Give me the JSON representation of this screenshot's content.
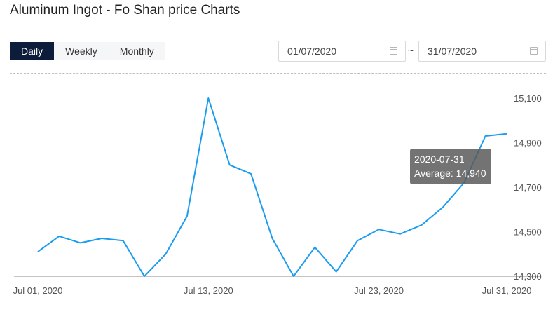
{
  "header": {
    "title": "Aluminum Ingot - Fo Shan price Charts"
  },
  "tabs": [
    {
      "label": "Daily",
      "active": true
    },
    {
      "label": "Weekly",
      "active": false
    },
    {
      "label": "Monthly",
      "active": false
    }
  ],
  "date_range": {
    "start": "01/07/2020",
    "separator": "~",
    "end": "31/07/2020"
  },
  "tooltip": {
    "date": "2020-07-31",
    "label": "Average: 14,940"
  },
  "colors": {
    "line": "#1a9cf0",
    "active_tab": "#0d1c3a",
    "axis": "#888888"
  },
  "chart_data": {
    "type": "line",
    "title": "Aluminum Ingot - Fo Shan price Charts",
    "x": [
      "2020-07-01",
      "2020-07-02",
      "2020-07-03",
      "2020-07-06",
      "2020-07-07",
      "2020-07-08",
      "2020-07-09",
      "2020-07-10",
      "2020-07-13",
      "2020-07-14",
      "2020-07-15",
      "2020-07-16",
      "2020-07-17",
      "2020-07-20",
      "2020-07-21",
      "2020-07-22",
      "2020-07-23",
      "2020-07-24",
      "2020-07-27",
      "2020-07-28",
      "2020-07-29",
      "2020-07-30",
      "2020-07-31"
    ],
    "series": [
      {
        "values": [
          14410,
          14480,
          14450,
          14470,
          14460,
          14300,
          14400,
          14570,
          15100,
          14800,
          14760,
          14470,
          14300,
          14430,
          14320,
          14460,
          14510,
          14490,
          14530,
          14610,
          14720,
          14930,
          14940
        ]
      }
    ],
    "x_tick_labels": [
      "Jul 01, 2020",
      "Jul 13, 2020",
      "Jul 23, 2020",
      "Jul 31, 2020"
    ],
    "x_tick_index": [
      0,
      8,
      16,
      22
    ],
    "y_ticks": [
      14300,
      14500,
      14700,
      14900,
      15100
    ],
    "y_tick_labels": [
      "14,300",
      "14,500",
      "14,700",
      "14,900",
      "15,100"
    ],
    "ylim": [
      14300,
      15100
    ],
    "xlabel": "",
    "ylabel": "",
    "grid": false,
    "legend": "none"
  }
}
